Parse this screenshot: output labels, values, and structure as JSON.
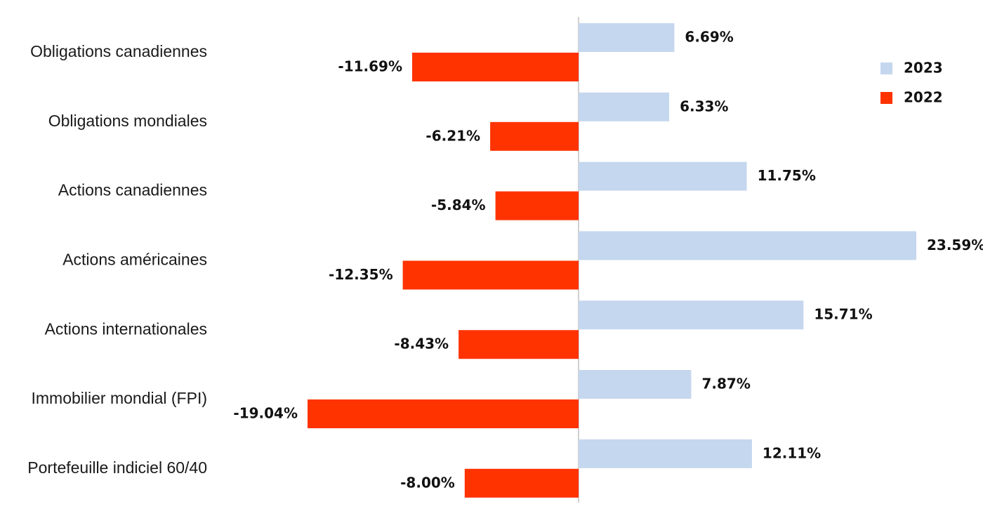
{
  "chart_data": {
    "type": "bar",
    "orientation": "horizontal",
    "categories": [
      "Obligations canadiennes",
      "Obligations mondiales",
      "Actions canadiennes",
      "Actions américaines",
      "Actions internationales",
      "Immobilier mondial (FPI)",
      "Portefeuille indiciel 60/40"
    ],
    "series": [
      {
        "name": "2023",
        "color": "#c5d7ee",
        "values": [
          6.69,
          6.33,
          11.75,
          23.59,
          15.71,
          7.87,
          12.11
        ]
      },
      {
        "name": "2022",
        "color": "#ff3300",
        "values": [
          -11.69,
          -6.21,
          -5.84,
          -12.35,
          -8.43,
          -19.04,
          -8.0
        ]
      }
    ],
    "value_format": "percent_2dp",
    "xlim": [
      -19.04,
      23.59
    ],
    "grid": false,
    "legend_position": "top-right",
    "title": "",
    "xlabel": "",
    "ylabel": ""
  }
}
